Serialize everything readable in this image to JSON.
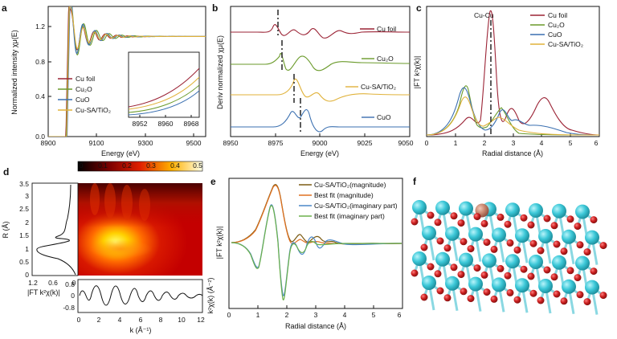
{
  "panel_letters": {
    "a": "a",
    "b": "b",
    "c": "c",
    "d": "d",
    "e": "e",
    "f": "f"
  },
  "chart_data": [
    {
      "panel": "a",
      "type": "line",
      "xlabel": "Energy (eV)",
      "ylabel": "Normalized intensity χμ(E)",
      "xlim": [
        8900,
        9550
      ],
      "ylim": [
        0.0,
        1.3
      ],
      "xticks": [
        "8900",
        "9100",
        "9300",
        "9500"
      ],
      "yticks": [
        "0.0",
        "0.4",
        "0.8",
        "1.2"
      ],
      "legend_position": "center-right",
      "series": [
        {
          "name": "Cu foil",
          "color": "#9b2335",
          "values": "XANES spectra, edge 8979 eV, plateau ~1.0"
        },
        {
          "name": "Cu₂O",
          "color": "#6a9a2a"
        },
        {
          "name": "CuO",
          "color": "#3a6fb0"
        },
        {
          "name": "Cu-SA/TiO₂",
          "color": "#e0b23a"
        }
      ],
      "inset": {
        "xticks": [
          "8952",
          "8960",
          "8968"
        ],
        "xlim": [
          8948,
          8970
        ]
      }
    },
    {
      "panel": "b",
      "type": "line",
      "xlabel": "Energy (eV)",
      "ylabel": "Deriv normalized χμ(E)",
      "xlim": [
        8950,
        9050
      ],
      "xticks": [
        "8950",
        "8975",
        "9000",
        "9025",
        "9050"
      ],
      "series": [
        {
          "name": "Cu foil",
          "color": "#9b2335",
          "marker_x": 8979
        },
        {
          "name": "Cu₂O",
          "color": "#6a9a2a",
          "marker_x": 8981
        },
        {
          "name": "Cu-SA/TiO₂",
          "color": "#e0b23a",
          "marker_x": 8986
        },
        {
          "name": "CuO",
          "color": "#3a6fb0",
          "marker_x": 8990
        }
      ]
    },
    {
      "panel": "c",
      "type": "line",
      "xlabel": "Radial distance (Å)",
      "ylabel": "|FT k²χ(k)|",
      "xlim": [
        0,
        6
      ],
      "xticks": [
        "0",
        "1",
        "2",
        "3",
        "4",
        "5",
        "6"
      ],
      "annotation": "Cu-Cu",
      "annotation_x": 2.24,
      "legend_position": "top-right",
      "series": [
        {
          "name": "Cu foil",
          "color": "#9b2335"
        },
        {
          "name": "Cu₂O",
          "color": "#6a9a2a"
        },
        {
          "name": "CuO",
          "color": "#3a6fb0"
        },
        {
          "name": "Cu-SA/TiO₂",
          "color": "#e0b23a"
        }
      ]
    },
    {
      "panel": "d",
      "type": "heatmap",
      "colorbar_ticks": [
        "0",
        "0.1",
        "0.2",
        "0.3",
        "0.4",
        "0.5"
      ],
      "ylabel": "R (Å)",
      "yticks": [
        "0",
        "0.5",
        "1",
        "1.5",
        "2",
        "2.5",
        "3",
        "3.5"
      ],
      "ylim": [
        0,
        3.5
      ],
      "xlabel": "k (Å⁻¹)",
      "xticks": [
        "0",
        "2",
        "4",
        "6",
        "8",
        "10",
        "12"
      ],
      "xlim": [
        0,
        12
      ],
      "hotspot": {
        "k": 3.5,
        "R": 1.55
      },
      "side_profile": {
        "xlabel": "|FT k²χ(k)|",
        "xticks": [
          "1.2",
          "0.6",
          "0"
        ]
      },
      "bottom_profile": {
        "ylabel": "k²χ(k) (Å⁻²)",
        "yticks": [
          "0.8",
          "0",
          "-0.8"
        ]
      }
    },
    {
      "panel": "e",
      "type": "line",
      "xlabel": "Radial distance (Å)",
      "ylabel": "|FT k²χ(k)|",
      "xlim": [
        0,
        6
      ],
      "xticks": [
        "0",
        "1",
        "2",
        "3",
        "4",
        "5",
        "6"
      ],
      "legend_position": "top-right",
      "series": [
        {
          "name": "Cu-SA/TiO₂(magnitude)",
          "color": "#7a5a12"
        },
        {
          "name": "Best fit (magnitude)",
          "color": "#e07020"
        },
        {
          "name": "Cu-SA/TiO₂(imaginary part)",
          "color": "#4a88c8"
        },
        {
          "name": "Best fit (imaginary part)",
          "color": "#6ab04a"
        }
      ]
    },
    {
      "panel": "f",
      "type": "other",
      "structure": {
        "atoms": [
          "Ti",
          "O",
          "Cu"
        ],
        "colors": {
          "Ti": "#3cc8d8",
          "O": "#cc2020",
          "Cu": "#c98870"
        }
      }
    }
  ]
}
